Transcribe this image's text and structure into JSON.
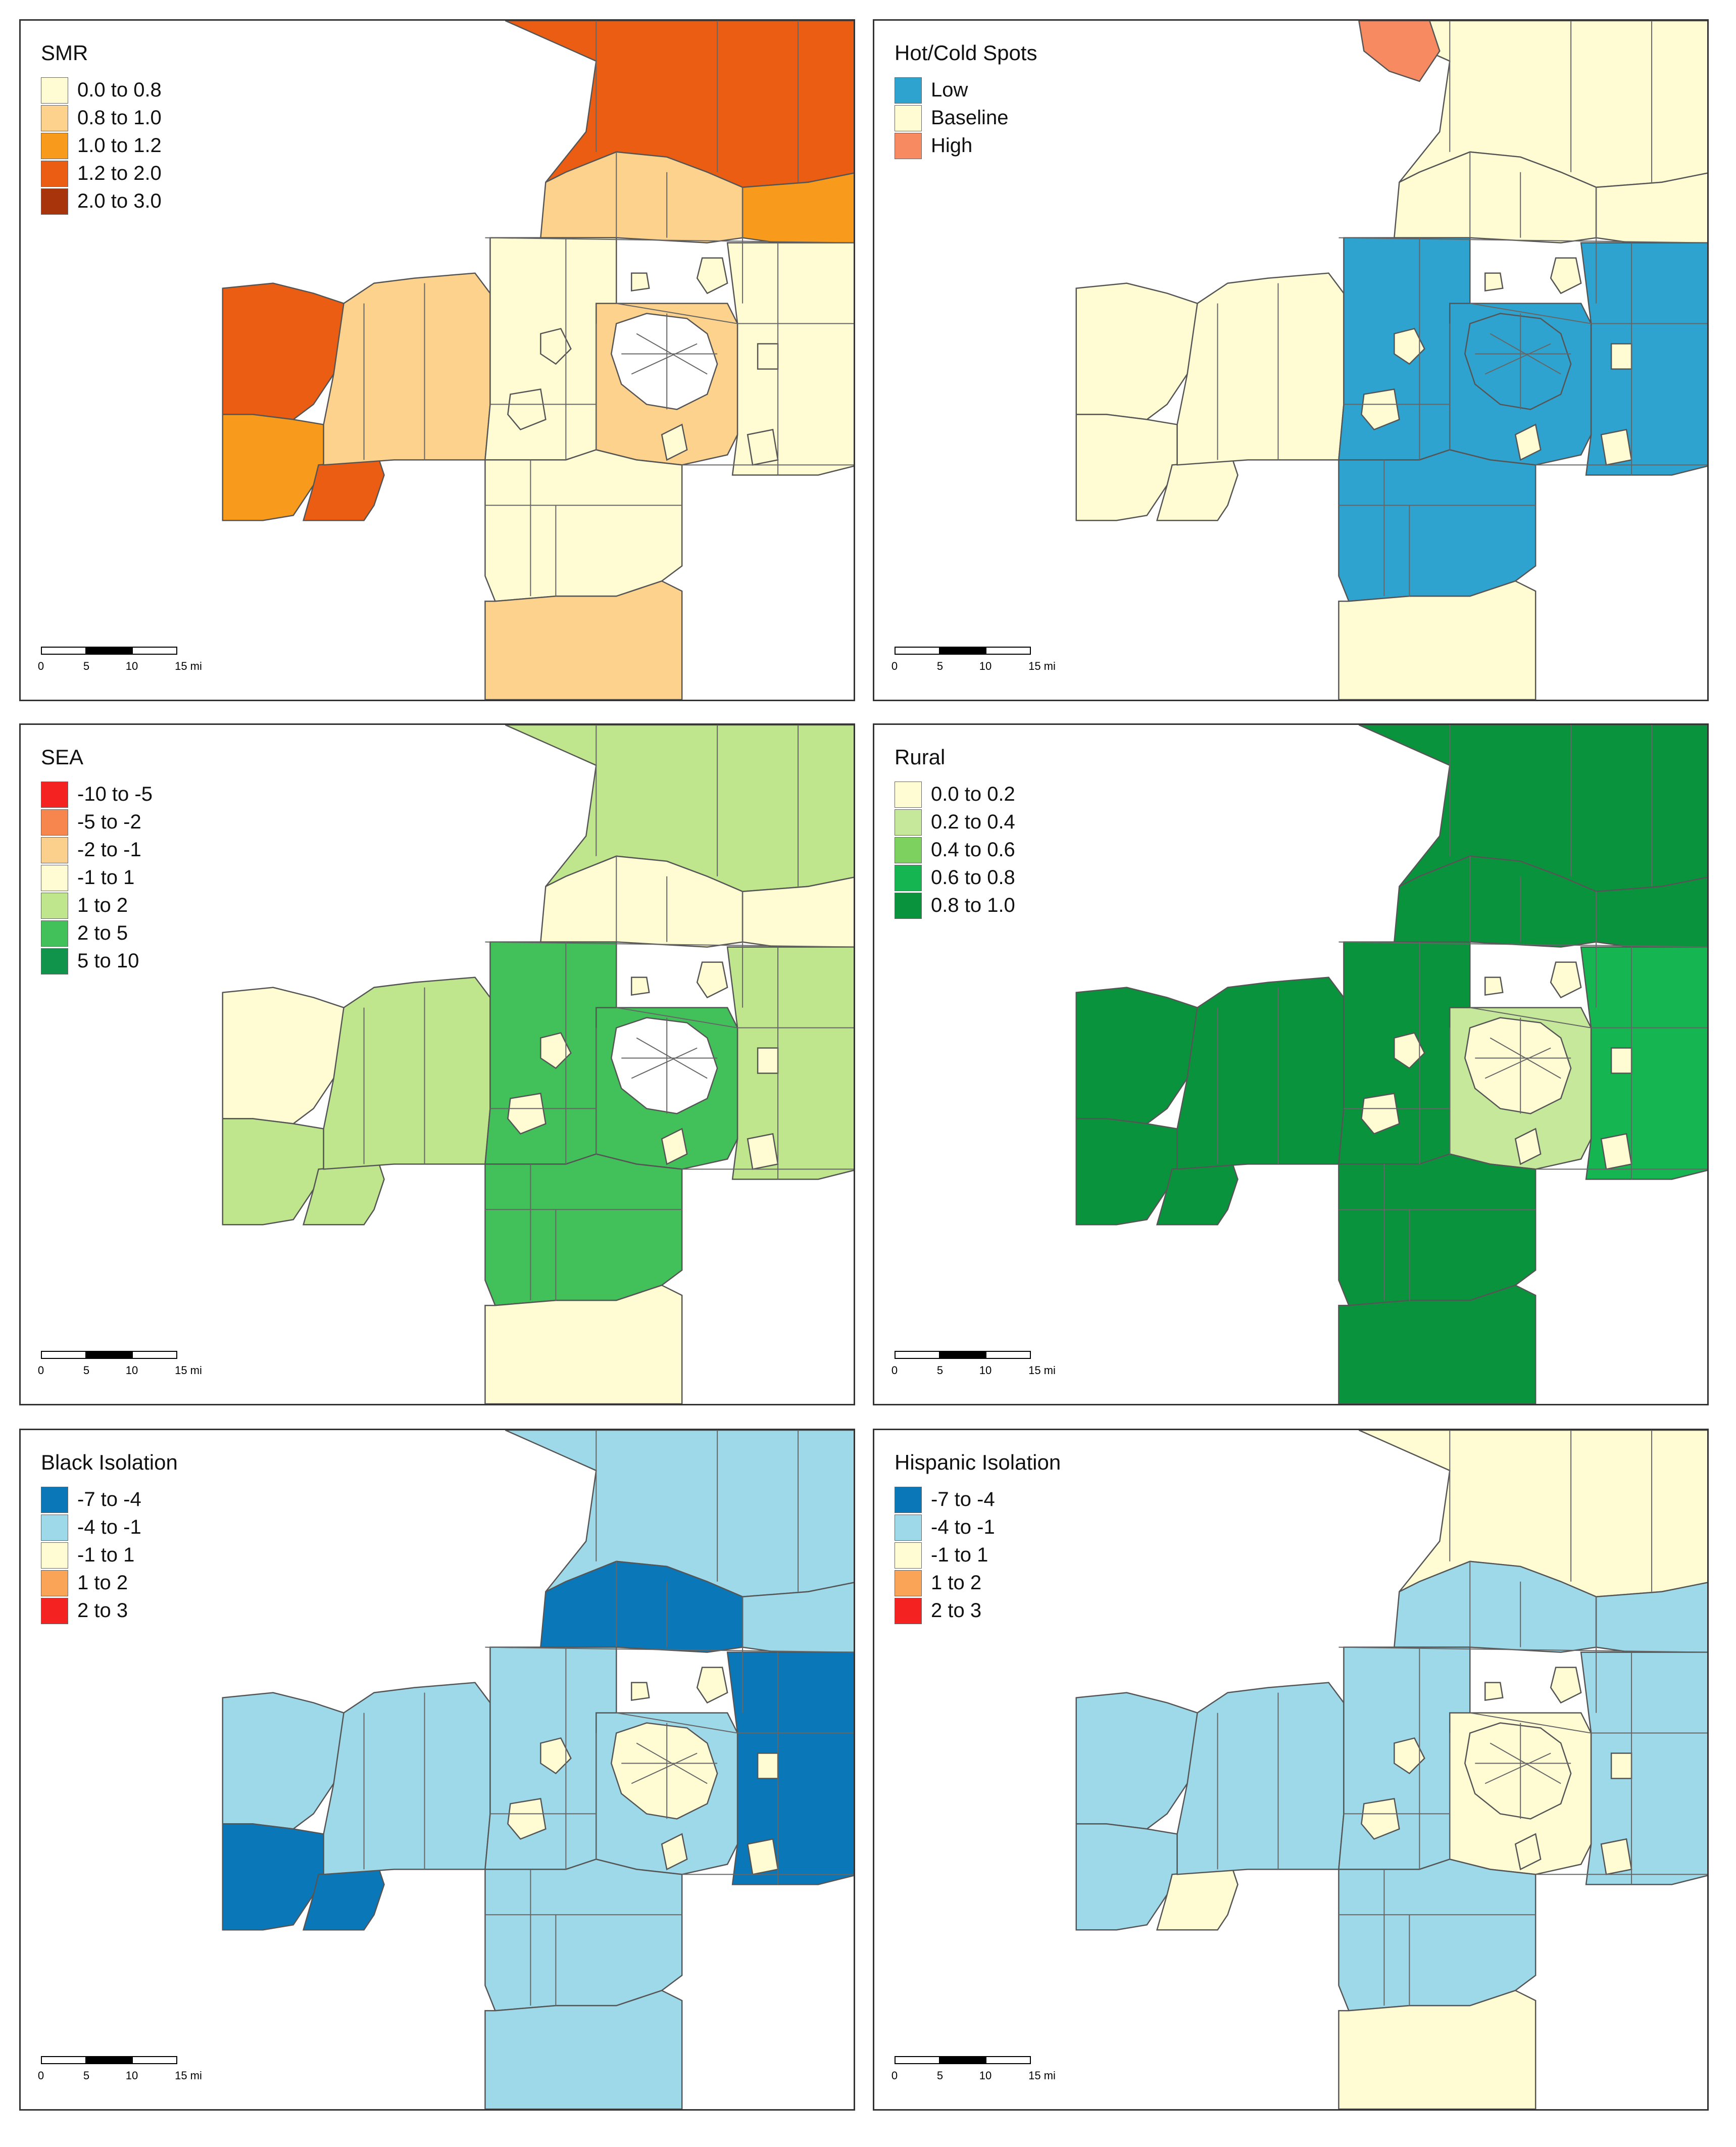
{
  "panels": [
    {
      "id": "smr",
      "title": "SMR",
      "legend": [
        {
          "label": "0.0 to 0.8",
          "color": "#fffbd2"
        },
        {
          "label": "0.8 to 1.0",
          "color": "#fdd28c"
        },
        {
          "label": "1.0 to 1.2",
          "color": "#f89a1c"
        },
        {
          "label": "1.2 to 2.0",
          "color": "#ea5d12"
        },
        {
          "label": "2.0 to 3.0",
          "color": "#a7340a"
        }
      ],
      "regions": {
        "west": "#ea5d12",
        "southwest": "#f89a1c",
        "swpocket": "#ea5d12",
        "northwest_mid": "#fdd28c",
        "north_top": "#ea5d12",
        "north_mid": "#fdd28c",
        "northeast": "#f89a1c",
        "center_west": "#fffbd2",
        "center": "#fdd28c",
        "east": "#fffbd2",
        "core": "#ffffff",
        "south_upper": "#fffbd2",
        "south_lower": "#fdd28c",
        "holes": "#fffbd2"
      }
    },
    {
      "id": "hotcold",
      "title": "Hot/Cold Spots",
      "legend": [
        {
          "label": "Low",
          "color": "#2ea3d0"
        },
        {
          "label": "Baseline",
          "color": "#fffbd2"
        },
        {
          "label": "High",
          "color": "#f88a62"
        }
      ],
      "regions": {
        "west": "#fffbd2",
        "southwest": "#fffbd2",
        "swpocket": "#fffbd2",
        "northwest_mid": "#fffbd2",
        "north_top": "#fffbd2",
        "north_mid": "#fffbd2",
        "northeast": "#fffbd2",
        "center_west": "#2ea3d0",
        "center": "#2ea3d0",
        "east": "#2ea3d0",
        "core": "#2ea3d0",
        "south_upper": "#2ea3d0",
        "south_lower": "#fffbd2",
        "holes": "#fffbd2",
        "topleft": "#f88a62"
      }
    },
    {
      "id": "sea",
      "title": "SEA",
      "legend": [
        {
          "label": "-10 to -5",
          "color": "#f52222"
        },
        {
          "label": "-5 to -2",
          "color": "#f7854e"
        },
        {
          "label": "-2 to -1",
          "color": "#fbcf8c"
        },
        {
          "label": "-1 to 1",
          "color": "#fffbd2"
        },
        {
          "label": "1 to 2",
          "color": "#bfe68c"
        },
        {
          "label": "2 to 5",
          "color": "#42c05a"
        },
        {
          "label": "5 to 10",
          "color": "#10934a"
        }
      ],
      "regions": {
        "west": "#fffbd2",
        "southwest": "#bfe68c",
        "swpocket": "#bfe68c",
        "northwest_mid": "#bfe68c",
        "north_top": "#bfe68c",
        "north_mid": "#fffbd2",
        "northeast": "#fffbd2",
        "center_west": "#42c05a",
        "center": "#42c05a",
        "east": "#bfe68c",
        "core": "#ffffff",
        "south_upper": "#42c05a",
        "south_lower": "#fffbd2",
        "holes": "#fffbd2"
      }
    },
    {
      "id": "rural",
      "title": "Rural",
      "legend": [
        {
          "label": "0.0 to 0.2",
          "color": "#fffbd2"
        },
        {
          "label": "0.2 to 0.4",
          "color": "#c5e89a"
        },
        {
          "label": "0.4 to 0.6",
          "color": "#7dd15f"
        },
        {
          "label": "0.6 to 0.8",
          "color": "#15b552"
        },
        {
          "label": "0.8 to 1.0",
          "color": "#0a933d"
        }
      ],
      "regions": {
        "west": "#0a933d",
        "southwest": "#0a933d",
        "swpocket": "#0a933d",
        "northwest_mid": "#0a933d",
        "north_top": "#0a933d",
        "north_mid": "#0a933d",
        "northeast": "#0a933d",
        "center_west": "#0a933d",
        "center": "#c5e89a",
        "east": "#15b552",
        "core": "#fffbd2",
        "south_upper": "#0a933d",
        "south_lower": "#0a933d",
        "holes": "#fffbd2"
      }
    },
    {
      "id": "black",
      "title": "Black Isolation",
      "legend": [
        {
          "label": "-7 to -4",
          "color": "#0a78b8"
        },
        {
          "label": "-4 to -1",
          "color": "#9ed9ea"
        },
        {
          "label": "-1 to 1",
          "color": "#fffbd2"
        },
        {
          "label": "1 to 2",
          "color": "#f9a456"
        },
        {
          "label": "2 to 3",
          "color": "#f52222"
        }
      ],
      "regions": {
        "west": "#9ed9ea",
        "southwest": "#0a78b8",
        "swpocket": "#0a78b8",
        "northwest_mid": "#9ed9ea",
        "north_top": "#9ed9ea",
        "north_mid": "#0a78b8",
        "northeast": "#9ed9ea",
        "center_west": "#9ed9ea",
        "center": "#9ed9ea",
        "east": "#0a78b8",
        "core": "#fffbd2",
        "south_upper": "#9ed9ea",
        "south_lower": "#9ed9ea",
        "holes": "#fffbd2"
      }
    },
    {
      "id": "hispanic",
      "title": "Hispanic Isolation",
      "legend": [
        {
          "label": "-7 to -4",
          "color": "#0a78b8"
        },
        {
          "label": "-4 to -1",
          "color": "#9ed9ea"
        },
        {
          "label": "-1 to 1",
          "color": "#fffbd2"
        },
        {
          "label": "1 to 2",
          "color": "#f9a456"
        },
        {
          "label": "2 to 3",
          "color": "#f52222"
        }
      ],
      "regions": {
        "west": "#9ed9ea",
        "southwest": "#9ed9ea",
        "swpocket": "#fffbd2",
        "northwest_mid": "#9ed9ea",
        "north_top": "#fffbd2",
        "north_mid": "#9ed9ea",
        "northeast": "#9ed9ea",
        "center_west": "#9ed9ea",
        "center": "#fffbd2",
        "east": "#9ed9ea",
        "core": "#fffbd2",
        "south_upper": "#9ed9ea",
        "south_lower": "#fffbd2",
        "holes": "#fffbd2"
      }
    }
  ],
  "scalebar": {
    "ticks": [
      "0",
      "5",
      "10",
      "15 mi"
    ]
  }
}
